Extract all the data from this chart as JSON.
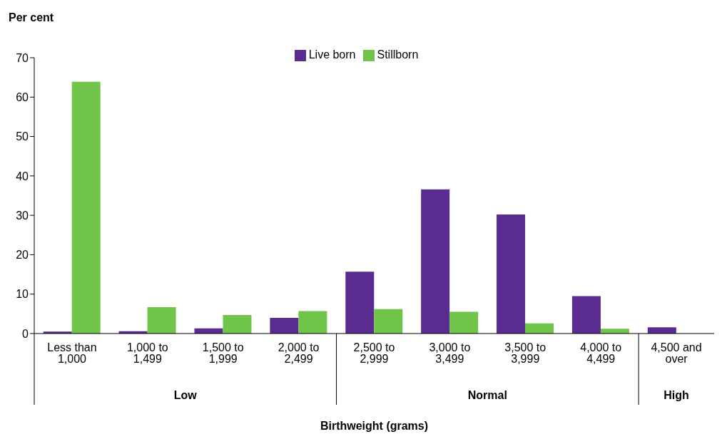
{
  "chart_data": {
    "type": "bar",
    "ylabel": "Per cent",
    "xlabel": "Birthweight (grams)",
    "categories": [
      "Less than 1,000",
      "1,000 to 1,499",
      "1,500 to 1,999",
      "2,000 to 2,499",
      "2,500 to 2,999",
      "3,000 to 3,499",
      "3,500 to 3,999",
      "4,000 to 4,499",
      "4,500 and over"
    ],
    "series": [
      {
        "name": "Live born",
        "color": "#5b2c8f",
        "values": [
          0.5,
          0.6,
          1.3,
          4.0,
          15.7,
          36.6,
          30.2,
          9.5,
          1.6
        ]
      },
      {
        "name": "Stillborn",
        "color": "#70c44a",
        "values": [
          63.9,
          6.7,
          4.7,
          5.7,
          6.2,
          5.5,
          2.6,
          1.2,
          0
        ]
      }
    ],
    "ylim": [
      0,
      70
    ],
    "yticks": [
      0,
      10,
      20,
      30,
      40,
      50,
      60,
      70
    ],
    "grid": false,
    "legend": "top",
    "annotations": [
      "Low",
      "Normal",
      "High"
    ]
  }
}
